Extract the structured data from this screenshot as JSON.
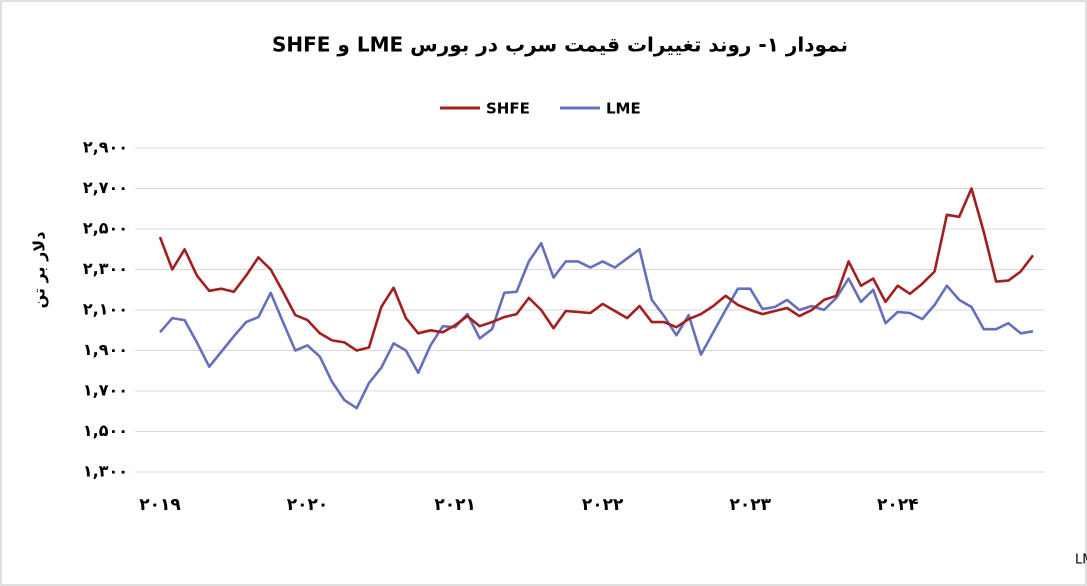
{
  "chart_data": {
    "type": "line",
    "title": "نمودار ۱- روند تغییرات قیمت سرب در بورس LME و SHFE",
    "y_label": "دلار بر تن",
    "source": "منبع: LME & SHFE",
    "categories": [
      "۲۰۱۹",
      null,
      null,
      null,
      null,
      null,
      null,
      null,
      null,
      null,
      null,
      null,
      "۲۰۲۰",
      null,
      null,
      null,
      null,
      null,
      null,
      null,
      null,
      null,
      null,
      null,
      "۲۰۲۱",
      null,
      null,
      null,
      null,
      null,
      null,
      null,
      null,
      null,
      null,
      null,
      "۲۰۲۲",
      null,
      null,
      null,
      null,
      null,
      null,
      null,
      null,
      null,
      null,
      null,
      "۲۰۲۳",
      null,
      null,
      null,
      null,
      null,
      null,
      null,
      null,
      null,
      null,
      null,
      "۲۰۲۴",
      null,
      null,
      null,
      null,
      null,
      null,
      null,
      null,
      null,
      null,
      null
    ],
    "series": [
      {
        "name": "SHFE",
        "color": "#a31f1f",
        "values": [
          2460,
          2300,
          2400,
          2270,
          2195,
          2205,
          2190,
          2270,
          2360,
          2300,
          2190,
          2075,
          2050,
          1985,
          1950,
          1940,
          1900,
          1915,
          2115,
          2210,
          2060,
          1985,
          2000,
          1990,
          2025,
          2070,
          2020,
          2040,
          2065,
          2080,
          2160,
          2100,
          2010,
          2095,
          2090,
          2085,
          2130,
          2095,
          2060,
          2120,
          2040,
          2040,
          2015,
          2055,
          2080,
          2120,
          2170,
          2125,
          2100,
          2080,
          2095,
          2110,
          2070,
          2100,
          2150,
          2170,
          2340,
          2220,
          2255,
          2140,
          2220,
          2180,
          2230,
          2290,
          2570,
          2560,
          2700,
          2485,
          2240,
          2245,
          2290,
          2370
        ]
      },
      {
        "name": "LME",
        "color": "#6470bd",
        "values": [
          1990,
          2060,
          2050,
          1940,
          1820,
          1895,
          1970,
          2040,
          2065,
          2185,
          2040,
          1900,
          1925,
          1870,
          1745,
          1655,
          1615,
          1740,
          1815,
          1935,
          1900,
          1790,
          1925,
          2020,
          2015,
          2080,
          1960,
          2005,
          2185,
          2190,
          2340,
          2430,
          2260,
          2340,
          2340,
          2310,
          2340,
          2310,
          2355,
          2400,
          2150,
          2070,
          1975,
          2075,
          1880,
          1990,
          2100,
          2205,
          2205,
          2105,
          2115,
          2150,
          2100,
          2120,
          2100,
          2160,
          2255,
          2140,
          2200,
          2035,
          2090,
          2085,
          2055,
          2125,
          2220,
          2150,
          2115,
          2005,
          2005,
          2035,
          1985,
          1995
        ]
      }
    ],
    "ylim": [
      1300,
      2900
    ],
    "yticks": [
      {
        "value": 1300,
        "label": "۱,۳۰۰"
      },
      {
        "value": 1500,
        "label": "۱,۵۰۰"
      },
      {
        "value": 1700,
        "label": "۱,۷۰۰"
      },
      {
        "value": 1900,
        "label": "۱,۹۰۰"
      },
      {
        "value": 2100,
        "label": "۲,۱۰۰"
      },
      {
        "value": 2300,
        "label": "۲,۳۰۰"
      },
      {
        "value": 2500,
        "label": "۲,۵۰۰"
      },
      {
        "value": 2700,
        "label": "۲,۷۰۰"
      },
      {
        "value": 2900,
        "label": "۲,۹۰۰"
      }
    ],
    "grid": true
  }
}
